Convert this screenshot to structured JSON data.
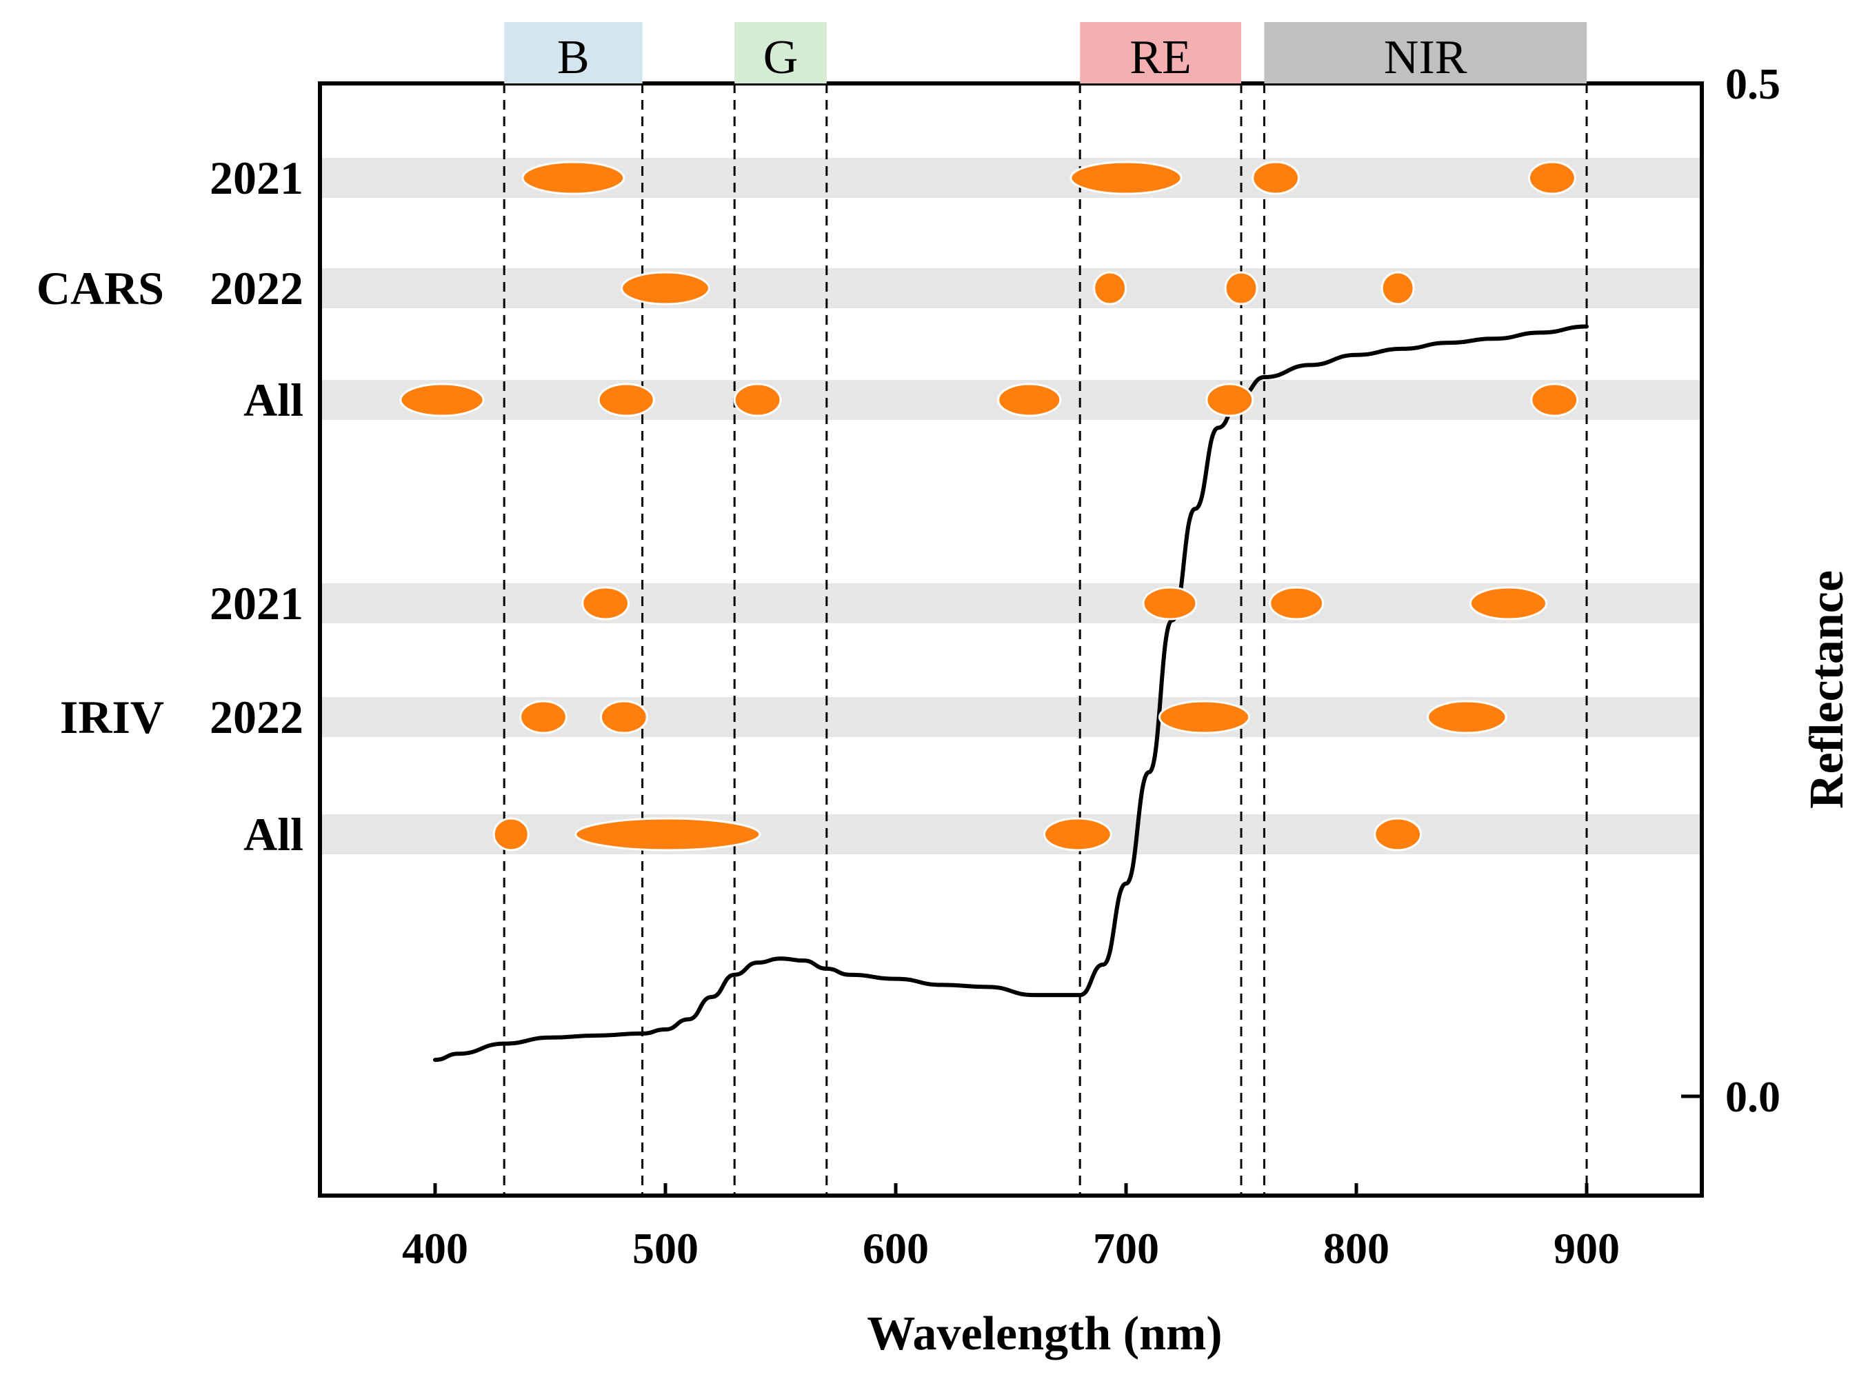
{
  "chart_data": {
    "type": "scatter",
    "xlabel": "Wavelength (nm)",
    "ylabel": "Reflectance",
    "xlim": [
      350,
      950
    ],
    "x_ticks": [
      "400",
      "500",
      "600",
      "700",
      "800",
      "900"
    ],
    "x_tick_values": [
      400,
      500,
      600,
      700,
      800,
      900
    ],
    "reflectance_ticks": [
      "0.0",
      "0.5"
    ],
    "reflectance_tick_values": [
      0.0,
      0.5
    ],
    "reflectance_lim": [
      -0.05,
      0.5
    ],
    "grid": false,
    "bands": [
      {
        "label": "B",
        "start": 430,
        "end": 490,
        "color": "#d3e6ef"
      },
      {
        "label": "G",
        "start": 530,
        "end": 570,
        "color": "#d4ecd4"
      },
      {
        "label": "RE",
        "start": 680,
        "end": 750,
        "color": "#f4b0b0"
      },
      {
        "label": "NIR",
        "start": 760,
        "end": 900,
        "color": "#c0c0c0"
      }
    ],
    "groups": [
      {
        "label": "CARS",
        "rows": [
          {
            "label": "2021",
            "points": [
              [
                460,
                44
              ],
              [
                700,
                48
              ],
              [
                765,
                20
              ],
              [
                885,
                20
              ]
            ]
          },
          {
            "label": "2022",
            "points": [
              [
                500,
                38
              ],
              [
                693,
                13
              ],
              [
                750,
                13
              ],
              [
                818,
                13
              ]
            ]
          },
          {
            "label": "All",
            "points": [
              [
                403,
                36
              ],
              [
                483,
                24
              ],
              [
                540,
                20
              ],
              [
                658,
                27
              ],
              [
                745,
                20
              ],
              [
                886,
                20
              ]
            ]
          }
        ]
      },
      {
        "label": "IRIV",
        "rows": [
          {
            "label": "2021",
            "points": [
              [
                474,
                20
              ],
              [
                719,
                23
              ],
              [
                774,
                23
              ],
              [
                866,
                33
              ]
            ]
          },
          {
            "label": "2022",
            "points": [
              [
                447,
                20
              ],
              [
                482,
                20
              ],
              [
                734,
                39
              ],
              [
                848,
                34
              ]
            ]
          },
          {
            "label": "All",
            "points": [
              [
                433,
                15
              ],
              [
                501,
                80
              ],
              [
                679,
                29
              ],
              [
                818,
                20
              ]
            ]
          }
        ]
      }
    ],
    "marker_color": "#ff7f0e",
    "row_band_color": "#e6e6e6",
    "spectrum": {
      "name": "Reflectance",
      "color": "#000000",
      "x": [
        400,
        410,
        430,
        450,
        470,
        490,
        500,
        510,
        520,
        530,
        540,
        550,
        560,
        570,
        580,
        600,
        620,
        640,
        660,
        680,
        690,
        700,
        710,
        720,
        730,
        740,
        750,
        760,
        780,
        800,
        820,
        840,
        860,
        880,
        900
      ],
      "y": [
        0.018,
        0.021,
        0.026,
        0.029,
        0.03,
        0.031,
        0.033,
        0.038,
        0.049,
        0.06,
        0.066,
        0.068,
        0.067,
        0.063,
        0.06,
        0.058,
        0.055,
        0.054,
        0.05,
        0.05,
        0.065,
        0.105,
        0.16,
        0.235,
        0.29,
        0.33,
        0.346,
        0.355,
        0.361,
        0.366,
        0.369,
        0.372,
        0.374,
        0.377,
        0.38
      ]
    }
  }
}
